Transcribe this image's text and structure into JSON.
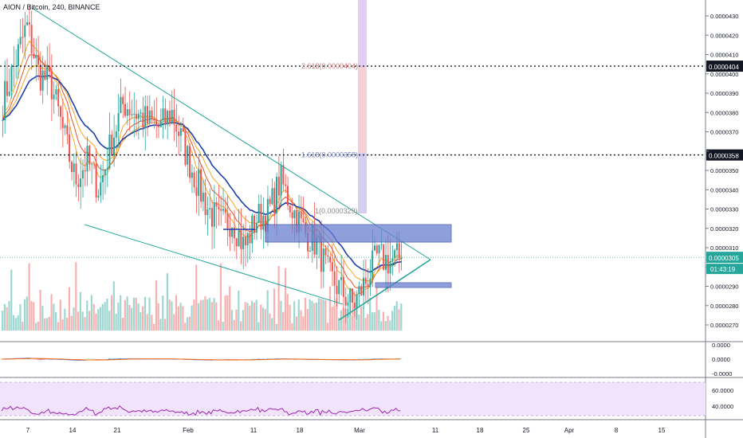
{
  "header": {
    "symbol_title": "AION / Bitcoin, 240, BINANCE"
  },
  "colors": {
    "up": "#26a69a",
    "down": "#ef5350",
    "trend": "#26a69a",
    "ma_blue": "#1e3fa8",
    "ma_orange": "#f5a623",
    "ma_red": "#e5532d",
    "box": "#6a7fd0",
    "rsi": "#9c27b0",
    "rsi_bg": "#f1e3fb",
    "price_tag": "#26a69a",
    "level_tag": "#131722",
    "fib_text": "#b08080"
  },
  "chart_data": {
    "type": "candlestick",
    "yaxis": {
      "ticks": [
        "0.0000430",
        "0.0000420",
        "0.0000410",
        "0.0000400",
        "0.0000390",
        "0.0000380",
        "0.0000370",
        "0.0000360",
        "0.0000350",
        "0.0000340",
        "0.0000330",
        "0.0000320",
        "0.0000310",
        "0.0000300",
        "0.0000290",
        "0.0000280",
        "0.0000270"
      ],
      "ylim": [
        2.62e-05,
        4.37e-05
      ]
    },
    "xaxis": {
      "ticks": [
        "7",
        "14",
        "21",
        "Feb",
        "11",
        "18",
        "Mar",
        "11",
        "18",
        "25",
        "Apr",
        "8",
        "15"
      ]
    },
    "price_samples": [
      [
        "Jan 5",
        3.85e-05
      ],
      [
        "Jan 6",
        4.05e-05
      ],
      [
        "Jan 7",
        4.25e-05
      ],
      [
        "Jan 8",
        4e-05
      ],
      [
        "Jan 9",
        3.95e-05
      ],
      [
        "Jan 11",
        3.7e-05
      ],
      [
        "Jan 13",
        3.45e-05
      ],
      [
        "Jan 15",
        3.55e-05
      ],
      [
        "Jan 17",
        3.4e-05
      ],
      [
        "Jan 18",
        3.65e-05
      ],
      [
        "Jan 20",
        3.85e-05
      ],
      [
        "Jan 21",
        3.8e-05
      ],
      [
        "Jan 23",
        3.75e-05
      ],
      [
        "Jan 25",
        3.72e-05
      ],
      [
        "Jan 27",
        3.8e-05
      ],
      [
        "Jan 28",
        3.62e-05
      ],
      [
        "Jan 30",
        3.45e-05
      ],
      [
        "Feb 1",
        3.3e-05
      ],
      [
        "Feb 3",
        3.22e-05
      ],
      [
        "Feb 5",
        3.25e-05
      ],
      [
        "Feb 7",
        3.1e-05
      ],
      [
        "Feb 9",
        3.25e-05
      ],
      [
        "Feb 11",
        3.28e-05
      ],
      [
        "Feb 13",
        3.45e-05
      ],
      [
        "Feb 15",
        3.3e-05
      ],
      [
        "Feb 17",
        3.18e-05
      ],
      [
        "Feb 19",
        3.12e-05
      ],
      [
        "Feb 21",
        2.95e-05
      ],
      [
        "Feb 23",
        2.88e-05
      ],
      [
        "Feb 25",
        2.8e-05
      ],
      [
        "Feb 27",
        2.92e-05
      ],
      [
        "Mar 1",
        3.05e-05
      ],
      [
        "Mar 3",
        3.03e-05
      ],
      [
        "Mar 4",
        3.05e-05
      ]
    ],
    "current_price": "0.0000305",
    "countdown": "01:43:19",
    "horizontal_levels": [
      {
        "label": "0.0000404",
        "value": 4.04e-05
      },
      {
        "label": "0.0000358",
        "value": 3.58e-05
      }
    ],
    "fib_labels": [
      {
        "text": "2.618(0.0000404)",
        "value": 4.04e-05
      },
      {
        "text": "1.618(0.0000358)",
        "value": 3.58e-05
      },
      {
        "text": "1(0.0000329)",
        "value": 3.29e-05
      }
    ],
    "indicator_panes": [
      {
        "name": "macd",
        "ticks": [
          "0.0000",
          "0.0000",
          "-0.0000"
        ]
      },
      {
        "name": "rsi",
        "ticks": [
          "60.0000",
          "40.0000"
        ],
        "levels": [
          70,
          30
        ]
      }
    ]
  }
}
